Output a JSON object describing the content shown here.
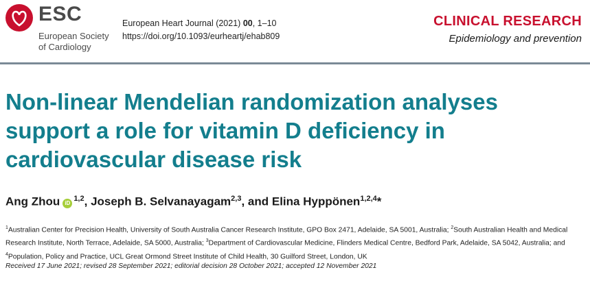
{
  "logo": {
    "abbr": "ESC",
    "line1": "European Society",
    "line2": "of Cardiology",
    "brand_color": "#c8102e"
  },
  "journal": {
    "name": "European Heart Journal (2021)",
    "volume": "00",
    "pages": ", 1–10",
    "doi": "https://doi.org/10.1093/eurheartj/ehab809"
  },
  "section": {
    "title": "CLINICAL RESEARCH",
    "subtitle": "Epidemiology and prevention",
    "color": "#c8102e"
  },
  "article": {
    "title": "Non-linear Mendelian randomization analyses support a role for vitamin D deficiency in cardiovascular disease risk",
    "title_color": "#137e8d"
  },
  "authors": [
    {
      "name": "Ang Zhou",
      "orcid_icon": "iD",
      "sup": "1,2",
      "after": ", "
    },
    {
      "name": "Joseph B. Selvanayagam",
      "sup": "2,3",
      "after": ", and "
    },
    {
      "name": "Elina Hyppönen",
      "sup": "1,2,4",
      "after": "*"
    }
  ],
  "affiliations": [
    {
      "num": "1",
      "text": "Australian Center for Precision Health, University of South Australia Cancer Research Institute, GPO Box 2471, Adelaide, SA 5001, Australia; "
    },
    {
      "num": "2",
      "text": "South Australian Health and Medical Research Institute, North Terrace, Adelaide, SA 5000, Australia; "
    },
    {
      "num": "3",
      "text": "Department of Cardiovascular Medicine, Flinders Medical Centre, Bedford Park, Adelaide, SA 5042, Australia; and "
    },
    {
      "num": "4",
      "text": "Population, Policy and Practice, UCL Great Ormond Street Institute of Child Health, 30 Guilford Street, London, UK"
    }
  ],
  "dates": "Received 17 June 2021; revised 28 September 2021; editorial decision 28 October 2021; accepted 12 November 2021"
}
